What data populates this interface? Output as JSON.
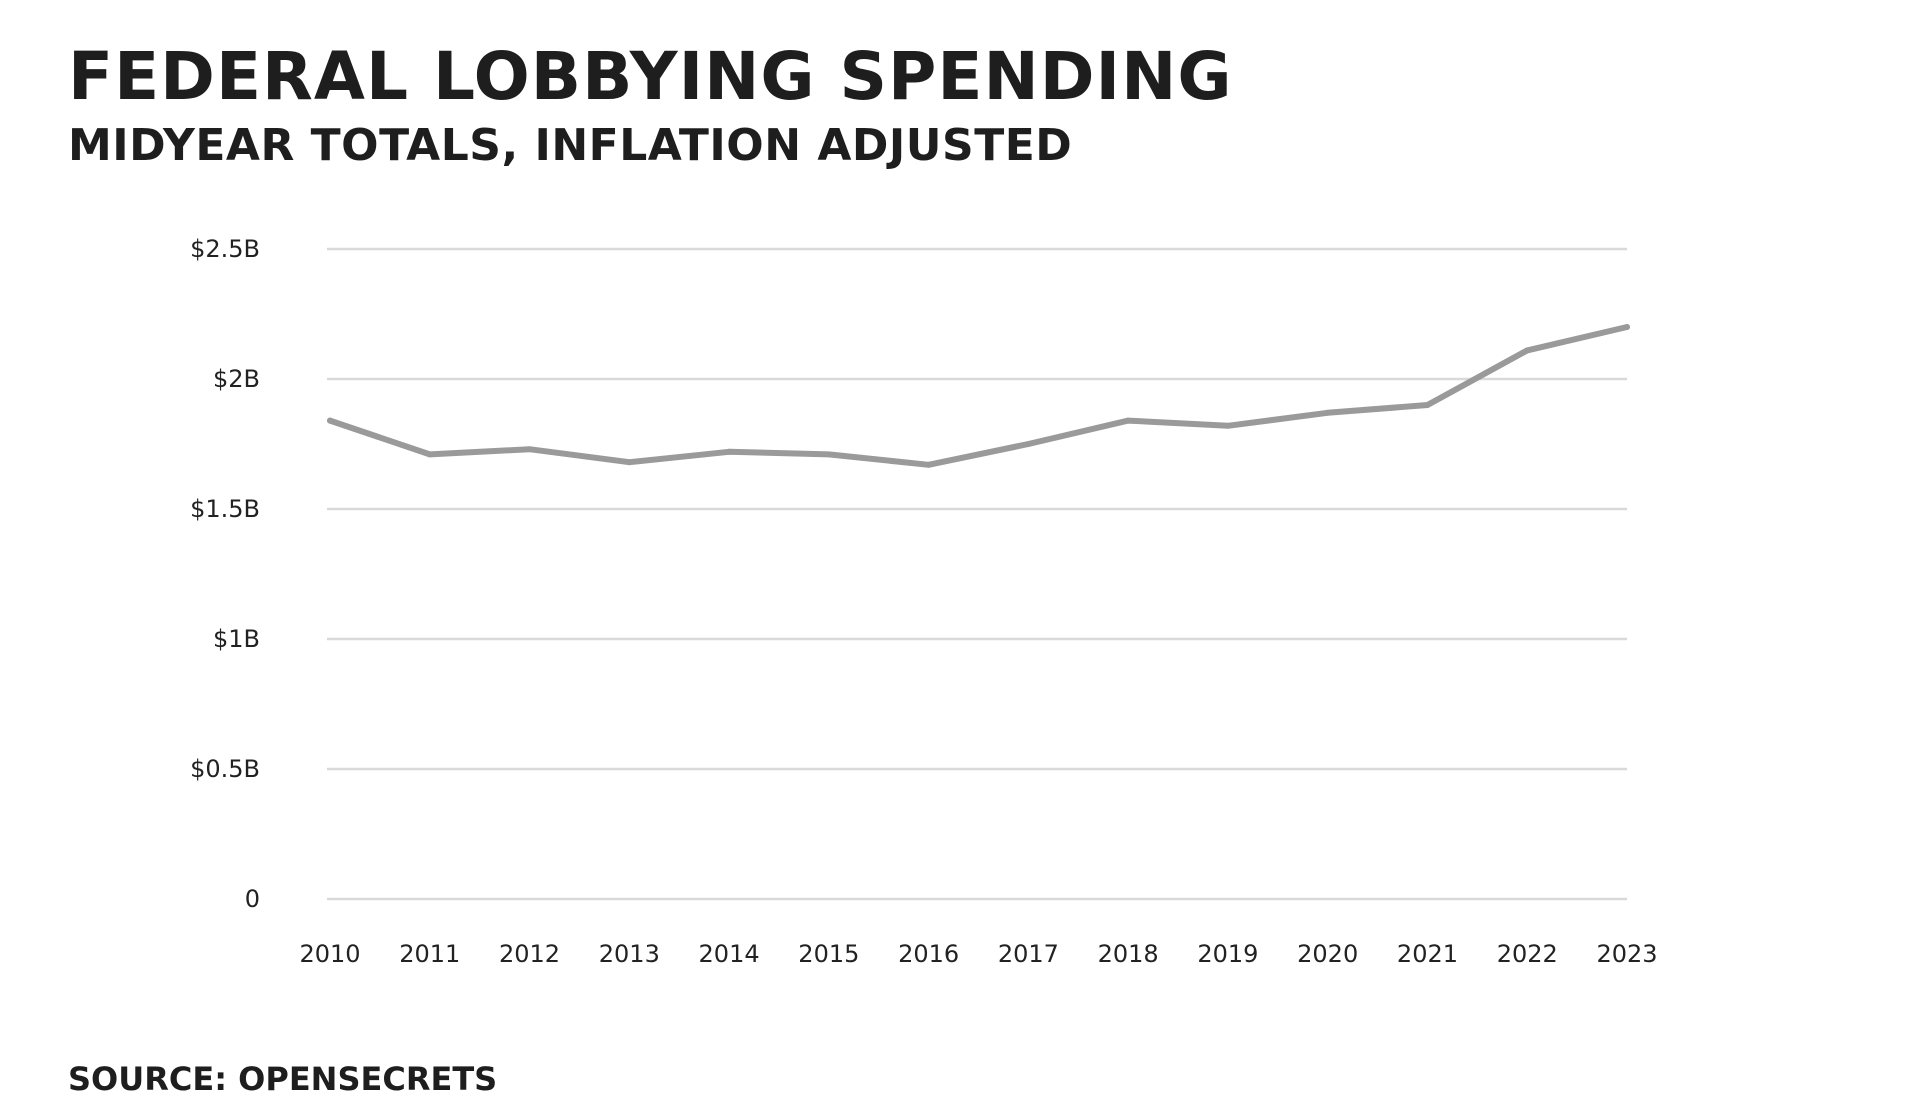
{
  "title": "FEDERAL LOBBYING SPENDING",
  "subtitle": "MIDYEAR TOTALS, INFLATION ADJUSTED",
  "source": "SOURCE: OPENSECRETS",
  "colors": {
    "line": "#9a9a9a",
    "grid": "#d9d9d9",
    "text": "#1e1e1e"
  },
  "chart_data": {
    "type": "line",
    "title": "FEDERAL LOBBYING SPENDING",
    "subtitle": "MIDYEAR TOTALS, INFLATION ADJUSTED",
    "xlabel": "",
    "ylabel": "",
    "categories": [
      "2010",
      "2011",
      "2012",
      "2013",
      "2014",
      "2015",
      "2016",
      "2017",
      "2018",
      "2019",
      "2020",
      "2021",
      "2022",
      "2023"
    ],
    "series": [
      {
        "values": [
          1.84,
          1.71,
          1.73,
          1.68,
          1.72,
          1.71,
          1.67,
          1.75,
          1.84,
          1.82,
          1.87,
          1.9,
          2.11,
          2.2
        ]
      }
    ],
    "ylim": [
      0,
      2.5
    ],
    "yticks": [
      0,
      0.5,
      1,
      1.5,
      2,
      2.5
    ],
    "ytick_labels": [
      "0",
      "$0.5B",
      "$1B",
      "$1.5B",
      "$2B",
      "$2.5B"
    ],
    "y_unit": "billions of US dollars",
    "grid": true,
    "legend": "none"
  }
}
